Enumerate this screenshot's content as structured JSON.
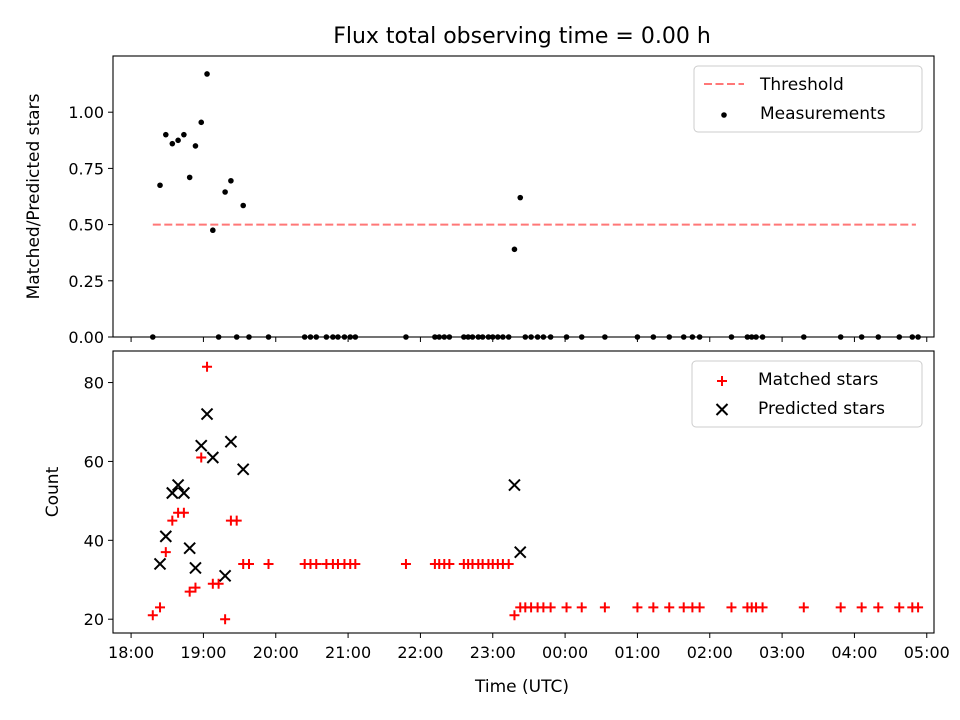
{
  "chart_data": [
    {
      "type": "scatter",
      "title": "Flux total observing time = 0.00 h",
      "ylabel": "Matched/Predicted stars",
      "xlabel": "",
      "xlim": [
        -0.25,
        11.1
      ],
      "ylim": [
        0,
        1.25
      ],
      "yticks": [
        0.0,
        0.25,
        0.5,
        0.75,
        1.0
      ],
      "ytick_labels": [
        "0.00",
        "0.25",
        "0.50",
        "0.75",
        "1.00"
      ],
      "legend": {
        "placement": "top-right",
        "entries": [
          "Threshold",
          "Measurements"
        ]
      },
      "threshold": {
        "name": "Threshold",
        "y": 0.5,
        "x": [
          0.3,
          10.85
        ],
        "color": "#ff7777"
      },
      "series": [
        {
          "name": "Measurements",
          "color": "#000000",
          "x": [
            0.3,
            0.4,
            0.48,
            0.57,
            0.65,
            0.73,
            0.81,
            0.89,
            0.97,
            1.05,
            1.13,
            1.21,
            1.3,
            1.38,
            1.46,
            1.55,
            1.63,
            1.9,
            2.4,
            2.48,
            2.56,
            2.7,
            2.79,
            2.86,
            2.95,
            3.03,
            3.1,
            3.8,
            4.2,
            4.26,
            4.33,
            4.4,
            4.6,
            4.66,
            4.72,
            4.8,
            4.86,
            4.94,
            5.0,
            5.07,
            5.14,
            5.22,
            5.3,
            5.38,
            5.45,
            5.53,
            5.62,
            5.7,
            5.8,
            6.02,
            6.23,
            6.55,
            7.0,
            7.22,
            7.44,
            7.64,
            7.76,
            7.86,
            8.3,
            8.52,
            8.58,
            8.64,
            8.73,
            9.3,
            9.81,
            10.1,
            10.33,
            10.62,
            10.8,
            10.88
          ],
          "y": [
            0,
            0.675,
            0.9,
            0.86,
            0.875,
            0.9,
            0.71,
            0.85,
            0.955,
            1.17,
            0.475,
            0,
            0.645,
            0.695,
            0,
            0.585,
            0,
            0,
            0,
            0,
            0,
            0,
            0,
            0,
            0,
            0,
            0,
            0,
            0,
            0,
            0,
            0,
            0,
            0,
            0,
            0,
            0,
            0,
            0,
            0,
            0,
            0,
            0.39,
            0.62,
            0,
            0,
            0,
            0,
            0,
            0,
            0,
            0,
            0,
            0,
            0,
            0,
            0,
            0,
            0,
            0,
            0,
            0,
            0,
            0,
            0,
            0,
            0,
            0,
            0,
            0
          ]
        }
      ]
    },
    {
      "type": "scatter",
      "title": "",
      "ylabel": "Count",
      "xlabel": "Time (UTC)",
      "xlim": [
        -0.25,
        11.1
      ],
      "ylim": [
        16.5,
        88
      ],
      "yticks": [
        20,
        40,
        60,
        80
      ],
      "ytick_labels": [
        "20",
        "40",
        "60",
        "80"
      ],
      "xticks": [
        0,
        1,
        2,
        3,
        4,
        5,
        6,
        7,
        8,
        9,
        10,
        11
      ],
      "xtick_labels": [
        "18:00",
        "19:00",
        "20:00",
        "21:00",
        "22:00",
        "23:00",
        "00:00",
        "01:00",
        "02:00",
        "03:00",
        "04:00",
        "05:00"
      ],
      "legend": {
        "placement": "top-right",
        "entries": [
          "Matched stars",
          "Predicted stars"
        ]
      },
      "series": [
        {
          "name": "Matched stars",
          "color": "#ff0000",
          "marker": "plus",
          "x": [
            0.3,
            0.4,
            0.48,
            0.57,
            0.65,
            0.73,
            0.81,
            0.89,
            0.97,
            1.05,
            1.13,
            1.21,
            1.3,
            1.38,
            1.46,
            1.55,
            1.63,
            1.9,
            2.4,
            2.48,
            2.56,
            2.7,
            2.79,
            2.86,
            2.95,
            3.03,
            3.1,
            3.8,
            4.2,
            4.26,
            4.33,
            4.4,
            4.6,
            4.66,
            4.72,
            4.8,
            4.86,
            4.94,
            5.0,
            5.07,
            5.14,
            5.22,
            5.3,
            5.38,
            5.45,
            5.53,
            5.62,
            5.7,
            5.8,
            6.02,
            6.23,
            6.55,
            7.0,
            7.22,
            7.44,
            7.64,
            7.76,
            7.86,
            8.3,
            8.52,
            8.58,
            8.64,
            8.73,
            9.3,
            9.81,
            10.1,
            10.33,
            10.62,
            10.8,
            10.88
          ],
          "y": [
            21,
            23,
            37,
            45,
            47,
            47,
            27,
            28,
            61,
            84,
            29,
            29,
            20,
            45,
            45,
            34,
            34,
            34,
            34,
            34,
            34,
            34,
            34,
            34,
            34,
            34,
            34,
            34,
            34,
            34,
            34,
            34,
            34,
            34,
            34,
            34,
            34,
            34,
            34,
            34,
            34,
            34,
            21,
            23,
            23,
            23,
            23,
            23,
            23,
            23,
            23,
            23,
            23,
            23,
            23,
            23,
            23,
            23,
            23,
            23,
            23,
            23,
            23,
            23,
            23,
            23,
            23,
            23,
            23,
            23
          ]
        },
        {
          "name": "Predicted stars",
          "color": "#000000",
          "marker": "x",
          "x": [
            0.4,
            0.48,
            0.57,
            0.65,
            0.73,
            0.81,
            0.89,
            0.97,
            1.05,
            1.13,
            1.3,
            1.38,
            1.55,
            5.3,
            5.38
          ],
          "y": [
            34,
            41,
            52,
            54,
            52,
            38,
            33,
            64,
            72,
            61,
            31,
            65,
            58,
            54,
            37
          ]
        }
      ]
    }
  ]
}
